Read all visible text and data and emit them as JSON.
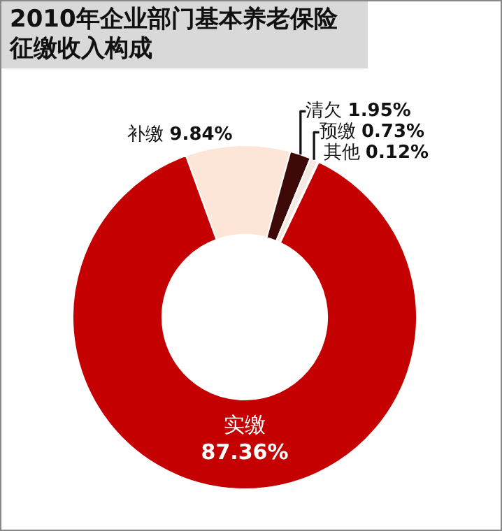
{
  "chart_data": {
    "type": "donut",
    "title": "2010年企业部门基本养老保险征缴收入构成",
    "categories": [
      "补缴",
      "清欠",
      "预缴",
      "其他",
      "实缴"
    ],
    "values": [
      9.84,
      1.95,
      0.73,
      0.12,
      87.36
    ],
    "value_labels": [
      "9.84%",
      "1.95%",
      "0.73%",
      "0.12%",
      "87.36%"
    ],
    "colors": [
      "#fde6d8",
      "#3d0a08",
      "#f4e8e0",
      "#ffffff",
      "#c40000"
    ],
    "legend": false
  }
}
